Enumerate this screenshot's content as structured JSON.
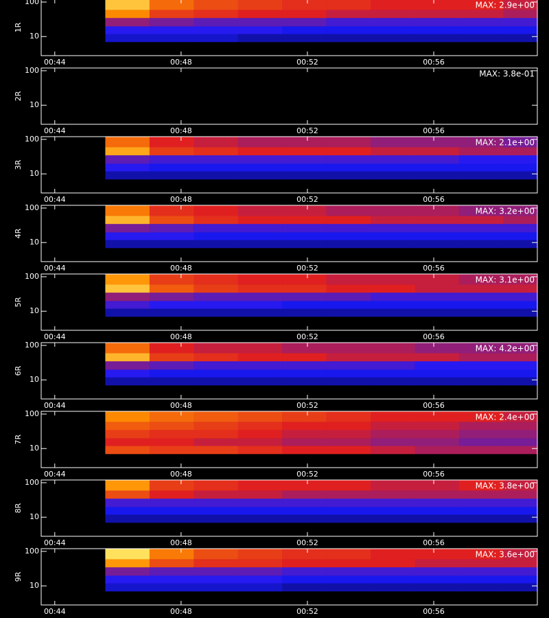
{
  "chart_data": [
    {
      "type": "heatmap",
      "ylabel": "1R",
      "annotation": "MAX: 2.9e+00",
      "log_y": true,
      "zlim": [
        0,
        3
      ],
      "colorscale": [
        "#000000",
        "#1a1aff",
        "#e02020",
        "#ff9000",
        "#ffff80"
      ],
      "xlim": [
        43.57,
        59.28
      ],
      "ylim": [
        2.8,
        120
      ],
      "xticks": [
        {
          "value": 44,
          "label": "00:44"
        },
        {
          "value": 48,
          "label": "00:48"
        },
        {
          "value": 52,
          "label": "00:52"
        },
        {
          "value": 56,
          "label": "00:56"
        }
      ],
      "yticks": [
        10,
        100
      ],
      "x_edges": [
        45.6,
        47,
        48.4,
        49.8,
        51.2,
        52.6,
        54,
        55.4,
        56.8,
        58.2,
        59.28
      ],
      "y_edges": [
        7,
        12,
        20,
        35,
        60,
        120
      ],
      "z": [
        [
          0.6,
          0.6,
          0.6,
          0.5,
          0.5,
          0.5,
          0.5,
          0.5,
          0.5,
          0.5
        ],
        [
          0.8,
          0.8,
          0.8,
          0.8,
          0.7,
          0.7,
          0.7,
          0.7,
          0.7,
          0.7
        ],
        [
          1.2,
          1.1,
          1.0,
          1.0,
          1.0,
          0.9,
          0.9,
          0.9,
          0.9,
          0.9
        ],
        [
          2.2,
          1.7,
          1.6,
          1.5,
          1.5,
          1.4,
          1.4,
          1.4,
          1.4,
          1.3
        ],
        [
          2.6,
          2.0,
          1.8,
          1.7,
          1.6,
          1.6,
          1.5,
          1.5,
          1.5,
          1.4
        ]
      ]
    },
    {
      "type": "heatmap",
      "ylabel": "2R",
      "annotation": "MAX: 3.8e-01",
      "log_y": true,
      "zlim": [
        0,
        3
      ],
      "colorscale": [
        "#000000",
        "#1a1aff",
        "#e02020",
        "#ff9000",
        "#ffff80"
      ],
      "xlim": [
        43.57,
        59.28
      ],
      "ylim": [
        2.8,
        120
      ],
      "xticks": [
        {
          "value": 44,
          "label": "00:44"
        },
        {
          "value": 48,
          "label": "00:48"
        },
        {
          "value": 52,
          "label": "00:52"
        },
        {
          "value": 56,
          "label": "00:56"
        }
      ],
      "yticks": [
        10,
        100
      ],
      "x_edges": [
        45.6,
        47,
        48.4,
        49.8,
        51.2,
        52.6,
        54,
        55.4,
        56.8,
        58.2,
        59.28
      ],
      "y_edges": [
        7,
        12,
        20,
        35,
        60,
        120
      ],
      "z": [
        [
          0,
          0,
          0,
          0,
          0,
          0,
          0,
          0,
          0,
          0
        ],
        [
          0,
          0,
          0,
          0,
          0,
          0,
          0,
          0,
          0,
          0
        ],
        [
          0,
          0,
          0,
          0,
          0,
          0,
          0,
          0,
          0,
          0
        ],
        [
          0,
          0,
          0,
          0,
          0,
          0,
          0,
          0,
          0,
          0
        ],
        [
          0,
          0,
          0,
          0,
          0,
          0,
          0,
          0,
          0,
          0
        ]
      ]
    },
    {
      "type": "heatmap",
      "ylabel": "3R",
      "annotation": "MAX: 2.1e+00",
      "log_y": true,
      "zlim": [
        0,
        3
      ],
      "colorscale": [
        "#000000",
        "#1a1aff",
        "#e02020",
        "#ff9000",
        "#ffff80"
      ],
      "xlim": [
        43.57,
        59.28
      ],
      "ylim": [
        2.8,
        120
      ],
      "xticks": [
        {
          "value": 44,
          "label": "00:44"
        },
        {
          "value": 48,
          "label": "00:48"
        },
        {
          "value": 52,
          "label": "00:52"
        },
        {
          "value": 56,
          "label": "00:56"
        }
      ],
      "yticks": [
        10,
        100
      ],
      "x_edges": [
        45.6,
        47,
        48.4,
        49.8,
        51.2,
        52.6,
        54,
        55.4,
        56.8,
        58.2,
        59.28
      ],
      "y_edges": [
        7,
        12,
        20,
        35,
        60,
        120
      ],
      "z": [
        [
          0.5,
          0.5,
          0.5,
          0.5,
          0.5,
          0.5,
          0.5,
          0.5,
          0.5,
          0.5
        ],
        [
          0.8,
          0.7,
          0.7,
          0.7,
          0.7,
          0.7,
          0.7,
          0.7,
          0.7,
          0.7
        ],
        [
          1.0,
          0.9,
          0.9,
          0.9,
          0.9,
          0.9,
          0.9,
          0.9,
          0.8,
          0.8
        ],
        [
          2.4,
          1.7,
          1.6,
          1.5,
          1.5,
          1.5,
          1.4,
          1.4,
          1.3,
          1.3
        ],
        [
          2.0,
          1.5,
          1.4,
          1.3,
          1.3,
          1.3,
          1.2,
          1.2,
          1.2,
          1.1
        ]
      ]
    },
    {
      "type": "heatmap",
      "ylabel": "4R",
      "annotation": "MAX: 3.2e+00",
      "log_y": true,
      "zlim": [
        0,
        3
      ],
      "colorscale": [
        "#000000",
        "#1a1aff",
        "#e02020",
        "#ff9000",
        "#ffff80"
      ],
      "xlim": [
        43.57,
        59.28
      ],
      "ylim": [
        2.8,
        120
      ],
      "xticks": [
        {
          "value": 44,
          "label": "00:44"
        },
        {
          "value": 48,
          "label": "00:48"
        },
        {
          "value": 52,
          "label": "00:52"
        },
        {
          "value": 56,
          "label": "00:56"
        }
      ],
      "yticks": [
        10,
        100
      ],
      "x_edges": [
        45.6,
        47,
        48.4,
        49.8,
        51.2,
        52.6,
        54,
        55.4,
        56.8,
        58.2,
        59.28
      ],
      "y_edges": [
        7,
        12,
        20,
        35,
        60,
        120
      ],
      "z": [
        [
          0.5,
          0.5,
          0.5,
          0.5,
          0.5,
          0.5,
          0.5,
          0.5,
          0.5,
          0.5
        ],
        [
          0.8,
          0.8,
          0.7,
          0.7,
          0.7,
          0.7,
          0.7,
          0.7,
          0.7,
          0.7
        ],
        [
          1.1,
          1.0,
          0.9,
          0.9,
          0.9,
          0.9,
          0.9,
          0.9,
          0.9,
          0.9
        ],
        [
          2.5,
          1.8,
          1.6,
          1.5,
          1.5,
          1.5,
          1.4,
          1.4,
          1.4,
          1.3
        ],
        [
          2.1,
          1.6,
          1.5,
          1.4,
          1.4,
          1.3,
          1.3,
          1.3,
          1.2,
          1.2
        ]
      ]
    },
    {
      "type": "heatmap",
      "ylabel": "5R",
      "annotation": "MAX: 3.1e+00",
      "log_y": true,
      "zlim": [
        0,
        3
      ],
      "colorscale": [
        "#000000",
        "#1a1aff",
        "#e02020",
        "#ff9000",
        "#ffff80"
      ],
      "xlim": [
        43.57,
        59.28
      ],
      "ylim": [
        2.8,
        120
      ],
      "xticks": [
        {
          "value": 44,
          "label": "00:44"
        },
        {
          "value": 48,
          "label": "00:48"
        },
        {
          "value": 52,
          "label": "00:52"
        },
        {
          "value": 56,
          "label": "00:56"
        }
      ],
      "yticks": [
        10,
        100
      ],
      "x_edges": [
        45.6,
        47,
        48.4,
        49.8,
        51.2,
        52.6,
        54,
        55.4,
        56.8,
        58.2,
        59.28
      ],
      "y_edges": [
        7,
        12,
        20,
        35,
        60,
        120
      ],
      "z": [
        [
          0.5,
          0.5,
          0.5,
          0.5,
          0.5,
          0.5,
          0.5,
          0.5,
          0.5,
          0.5
        ],
        [
          0.9,
          0.8,
          0.8,
          0.8,
          0.7,
          0.7,
          0.7,
          0.7,
          0.7,
          0.7
        ],
        [
          1.2,
          1.1,
          1.0,
          1.0,
          1.0,
          1.0,
          0.9,
          0.9,
          0.9,
          0.9
        ],
        [
          2.6,
          1.9,
          1.7,
          1.6,
          1.6,
          1.5,
          1.5,
          1.4,
          1.4,
          1.4
        ],
        [
          2.3,
          1.7,
          1.6,
          1.5,
          1.5,
          1.4,
          1.4,
          1.4,
          1.3,
          1.3
        ]
      ]
    },
    {
      "type": "heatmap",
      "ylabel": "6R",
      "annotation": "MAX: 4.2e+00",
      "log_y": true,
      "zlim": [
        0,
        3
      ],
      "colorscale": [
        "#000000",
        "#1a1aff",
        "#e02020",
        "#ff9000",
        "#ffff80"
      ],
      "xlim": [
        43.57,
        59.28
      ],
      "ylim": [
        2.8,
        120
      ],
      "xticks": [
        {
          "value": 44,
          "label": "00:44"
        },
        {
          "value": 48,
          "label": "00:48"
        },
        {
          "value": 52,
          "label": "00:52"
        },
        {
          "value": 56,
          "label": "00:56"
        }
      ],
      "yticks": [
        10,
        100
      ],
      "x_edges": [
        45.6,
        47,
        48.4,
        49.8,
        51.2,
        52.6,
        54,
        55.4,
        56.8,
        58.2,
        59.28
      ],
      "y_edges": [
        7,
        12,
        20,
        35,
        60,
        120
      ],
      "z": [
        [
          0.5,
          0.5,
          0.5,
          0.5,
          0.5,
          0.5,
          0.5,
          0.5,
          0.5,
          0.5
        ],
        [
          0.8,
          0.7,
          0.7,
          0.7,
          0.7,
          0.7,
          0.7,
          0.7,
          0.7,
          0.7
        ],
        [
          1.1,
          1.0,
          0.9,
          0.9,
          0.9,
          0.9,
          0.9,
          0.8,
          0.8,
          0.8
        ],
        [
          2.5,
          1.7,
          1.6,
          1.5,
          1.5,
          1.4,
          1.4,
          1.4,
          1.3,
          1.3
        ],
        [
          2.0,
          1.5,
          1.4,
          1.4,
          1.3,
          1.3,
          1.3,
          1.2,
          1.2,
          1.2
        ]
      ]
    },
    {
      "type": "heatmap",
      "ylabel": "7R",
      "annotation": "MAX: 2.4e+00",
      "log_y": true,
      "zlim": [
        0,
        3
      ],
      "colorscale": [
        "#000000",
        "#1a1aff",
        "#e02020",
        "#ff9000",
        "#ffff80"
      ],
      "xlim": [
        43.57,
        59.28
      ],
      "ylim": [
        2.8,
        120
      ],
      "xticks": [
        {
          "value": 44,
          "label": "00:44"
        },
        {
          "value": 48,
          "label": "00:48"
        },
        {
          "value": 52,
          "label": "00:52"
        },
        {
          "value": 56,
          "label": "00:56"
        }
      ],
      "yticks": [
        10,
        100
      ],
      "x_edges": [
        45.6,
        47,
        48.4,
        49.8,
        51.2,
        52.6,
        54,
        55.4,
        56.8,
        58.2,
        59.28
      ],
      "y_edges": [
        7,
        12,
        20,
        35,
        60,
        120
      ],
      "z": [
        [
          1.8,
          1.7,
          1.7,
          1.6,
          1.5,
          1.5,
          1.4,
          1.3,
          1.3,
          1.3
        ],
        [
          1.5,
          1.5,
          1.4,
          1.4,
          1.3,
          1.3,
          1.2,
          1.2,
          1.1,
          1.1
        ],
        [
          1.7,
          1.6,
          1.6,
          1.5,
          1.4,
          1.4,
          1.3,
          1.3,
          1.2,
          1.2
        ],
        [
          1.9,
          1.8,
          1.7,
          1.6,
          1.5,
          1.5,
          1.4,
          1.4,
          1.3,
          1.3
        ],
        [
          2.2,
          2.0,
          1.9,
          1.8,
          1.7,
          1.6,
          1.5,
          1.5,
          1.5,
          1.4
        ]
      ]
    },
    {
      "type": "heatmap",
      "ylabel": "8R",
      "annotation": "MAX: 3.8e+00",
      "log_y": true,
      "zlim": [
        0,
        3
      ],
      "colorscale": [
        "#000000",
        "#1a1aff",
        "#e02020",
        "#ff9000",
        "#ffff80"
      ],
      "xlim": [
        43.57,
        59.28
      ],
      "ylim": [
        2.8,
        120
      ],
      "xticks": [
        {
          "value": 44,
          "label": "00:44"
        },
        {
          "value": 48,
          "label": "00:48"
        },
        {
          "value": 52,
          "label": "00:52"
        },
        {
          "value": 56,
          "label": "00:56"
        }
      ],
      "yticks": [
        10,
        100
      ],
      "x_edges": [
        45.6,
        47,
        48.4,
        49.8,
        51.2,
        52.6,
        54,
        55.4,
        56.8,
        58.2,
        59.28
      ],
      "y_edges": [
        7,
        12,
        20,
        35,
        60,
        120
      ],
      "z": [
        [
          0.5,
          0.5,
          0.5,
          0.5,
          0.5,
          0.5,
          0.5,
          0.5,
          0.5,
          0.5
        ],
        [
          0.7,
          0.7,
          0.7,
          0.7,
          0.7,
          0.7,
          0.7,
          0.7,
          0.7,
          0.7
        ],
        [
          0.9,
          0.9,
          0.9,
          0.9,
          0.9,
          0.9,
          0.9,
          0.9,
          0.9,
          0.9
        ],
        [
          1.8,
          1.5,
          1.4,
          1.4,
          1.3,
          1.3,
          1.3,
          1.3,
          1.3,
          1.3
        ],
        [
          2.3,
          1.7,
          1.6,
          1.5,
          1.5,
          1.5,
          1.4,
          1.4,
          1.5,
          1.4
        ]
      ]
    },
    {
      "type": "heatmap",
      "ylabel": "9R",
      "annotation": "MAX: 3.6e+00",
      "log_y": true,
      "zlim": [
        0,
        3
      ],
      "colorscale": [
        "#000000",
        "#1a1aff",
        "#e02020",
        "#ff9000",
        "#ffff80"
      ],
      "xlim": [
        43.57,
        59.28
      ],
      "ylim": [
        2.8,
        120
      ],
      "xticks": [
        {
          "value": 44,
          "label": "00:44"
        },
        {
          "value": 48,
          "label": "00:48"
        },
        {
          "value": 52,
          "label": "00:52"
        },
        {
          "value": 56,
          "label": "00:56"
        }
      ],
      "yticks": [
        10,
        100
      ],
      "x_edges": [
        45.6,
        47,
        48.4,
        49.8,
        51.2,
        52.6,
        54,
        55.4,
        56.8,
        58.2,
        59.28
      ],
      "y_edges": [
        7,
        12,
        20,
        35,
        60,
        120
      ],
      "z": [
        [
          0.6,
          0.6,
          0.6,
          0.6,
          0.5,
          0.5,
          0.5,
          0.5,
          0.5,
          0.5
        ],
        [
          0.8,
          0.8,
          0.8,
          0.8,
          0.7,
          0.7,
          0.7,
          0.7,
          0.7,
          0.7
        ],
        [
          1.1,
          1.0,
          1.0,
          1.0,
          0.9,
          0.9,
          0.9,
          0.9,
          0.9,
          0.9
        ],
        [
          2.3,
          1.8,
          1.6,
          1.6,
          1.5,
          1.5,
          1.5,
          1.4,
          1.4,
          1.4
        ],
        [
          2.8,
          2.1,
          1.8,
          1.7,
          1.6,
          1.6,
          1.5,
          1.5,
          1.5,
          1.4
        ]
      ]
    }
  ]
}
